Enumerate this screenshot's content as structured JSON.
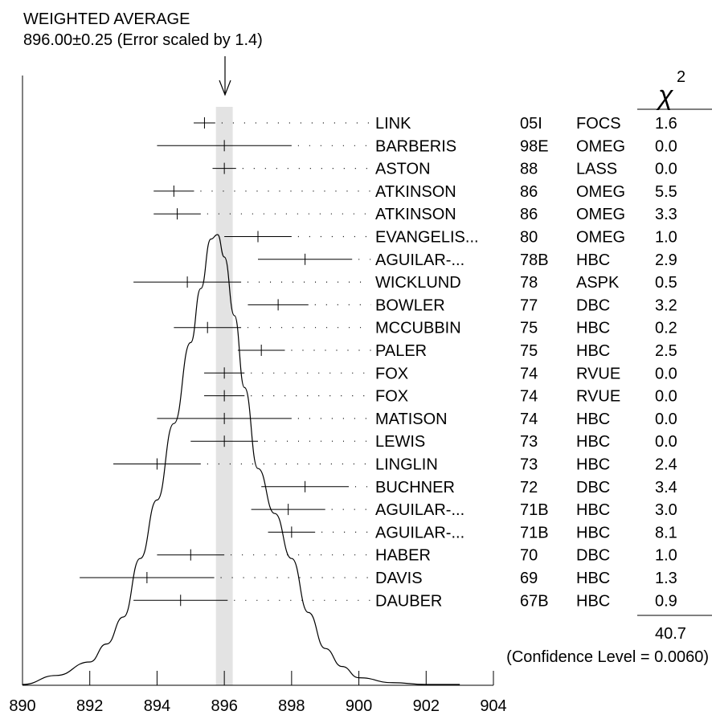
{
  "header": {
    "title": "WEIGHTED AVERAGE",
    "subtitle": "896.00±0.25 (Error scaled by 1.4)"
  },
  "chi2": {
    "symbol": "χ",
    "superscript": "2",
    "total": "40.7",
    "confidence": "(Confidence Level = 0.0060)"
  },
  "chart_data": {
    "type": "scatter",
    "title": "WEIGHTED AVERAGE",
    "subtitle": "896.00±0.25 (Error scaled by 1.4)",
    "weighted_average": 896.0,
    "weighted_error": 0.25,
    "xlim": [
      890,
      904
    ],
    "x_ticks": [
      890,
      892,
      894,
      896,
      898,
      900,
      902,
      904
    ],
    "grid": false,
    "measurements": [
      {
        "author": "LINK",
        "year": "05I",
        "experiment": "FOCS",
        "value": 895.41,
        "error": 0.32,
        "chi2": "1.6"
      },
      {
        "author": "BARBERIS",
        "year": "98E",
        "experiment": "OMEG",
        "value": 896.0,
        "error": 2.0,
        "chi2": "0.0"
      },
      {
        "author": "ASTON",
        "year": "88",
        "experiment": "LASS",
        "value": 896.0,
        "error": 0.35,
        "chi2": "0.0"
      },
      {
        "author": "ATKINSON",
        "year": "86",
        "experiment": "OMEG",
        "value": 894.5,
        "error": 0.6,
        "chi2": "5.5"
      },
      {
        "author": "ATKINSON",
        "year": "86",
        "experiment": "OMEG",
        "value": 894.6,
        "error": 0.7,
        "chi2": "3.3"
      },
      {
        "author": "EVANGELIS...",
        "year": "80",
        "experiment": "OMEG",
        "value": 897.0,
        "error": 1.0,
        "chi2": "1.0"
      },
      {
        "author": "AGUILAR-...",
        "year": "78B",
        "experiment": "HBC",
        "value": 898.4,
        "error": 1.4,
        "chi2": "2.9"
      },
      {
        "author": "WICKLUND",
        "year": "78",
        "experiment": "ASPK",
        "value": 894.9,
        "error": 1.6,
        "chi2": "0.5"
      },
      {
        "author": "BOWLER",
        "year": "77",
        "experiment": "DBC",
        "value": 897.6,
        "error": 0.9,
        "chi2": "3.2"
      },
      {
        "author": "MCCUBBIN",
        "year": "75",
        "experiment": "HBC",
        "value": 895.5,
        "error": 1.0,
        "chi2": "0.2"
      },
      {
        "author": "PALER",
        "year": "75",
        "experiment": "HBC",
        "value": 897.1,
        "error": 0.7,
        "chi2": "2.5"
      },
      {
        "author": "FOX",
        "year": "74",
        "experiment": "RVUE",
        "value": 896.0,
        "error": 0.6,
        "chi2": "0.0"
      },
      {
        "author": "FOX",
        "year": "74",
        "experiment": "RVUE",
        "value": 896.0,
        "error": 0.6,
        "chi2": "0.0"
      },
      {
        "author": "MATISON",
        "year": "74",
        "experiment": "HBC",
        "value": 896.0,
        "error": 2.0,
        "chi2": "0.0"
      },
      {
        "author": "LEWIS",
        "year": "73",
        "experiment": "HBC",
        "value": 896.0,
        "error": 1.0,
        "chi2": "0.0"
      },
      {
        "author": "LINGLIN",
        "year": "73",
        "experiment": "HBC",
        "value": 894.0,
        "error": 1.3,
        "chi2": "2.4"
      },
      {
        "author": "BUCHNER",
        "year": "72",
        "experiment": "DBC",
        "value": 898.4,
        "error": 1.3,
        "chi2": "3.4"
      },
      {
        "author": "AGUILAR-...",
        "year": "71B",
        "experiment": "HBC",
        "value": 897.9,
        "error": 1.1,
        "chi2": "3.0"
      },
      {
        "author": "AGUILAR-...",
        "year": "71B",
        "experiment": "HBC",
        "value": 898.0,
        "error": 0.7,
        "chi2": "8.1"
      },
      {
        "author": "HABER",
        "year": "70",
        "experiment": "DBC",
        "value": 895.0,
        "error": 1.0,
        "chi2": "1.0"
      },
      {
        "author": "DAVIS",
        "year": "69",
        "experiment": "HBC",
        "value": 893.7,
        "error": 2.0,
        "chi2": "1.3"
      },
      {
        "author": "DAUBER",
        "year": "67B",
        "experiment": "HBC",
        "value": 894.7,
        "error": 1.4,
        "chi2": "0.9"
      }
    ],
    "ideogram_curve": [
      [
        890.0,
        0.0
      ],
      [
        891.0,
        0.02
      ],
      [
        892.0,
        0.05
      ],
      [
        892.5,
        0.09
      ],
      [
        893.0,
        0.15
      ],
      [
        893.5,
        0.28
      ],
      [
        894.0,
        0.41
      ],
      [
        894.5,
        0.58
      ],
      [
        895.0,
        0.76
      ],
      [
        895.3,
        0.88
      ],
      [
        895.6,
        0.99
      ],
      [
        895.8,
        1.0
      ],
      [
        896.0,
        0.95
      ],
      [
        896.3,
        0.82
      ],
      [
        896.6,
        0.66
      ],
      [
        897.0,
        0.48
      ],
      [
        897.5,
        0.38
      ],
      [
        898.0,
        0.28
      ],
      [
        898.5,
        0.16
      ],
      [
        899.0,
        0.08
      ],
      [
        899.5,
        0.04
      ],
      [
        900.0,
        0.015
      ],
      [
        901.0,
        0.004
      ],
      [
        902.0,
        0.0
      ],
      [
        903.0,
        0.0
      ]
    ]
  }
}
